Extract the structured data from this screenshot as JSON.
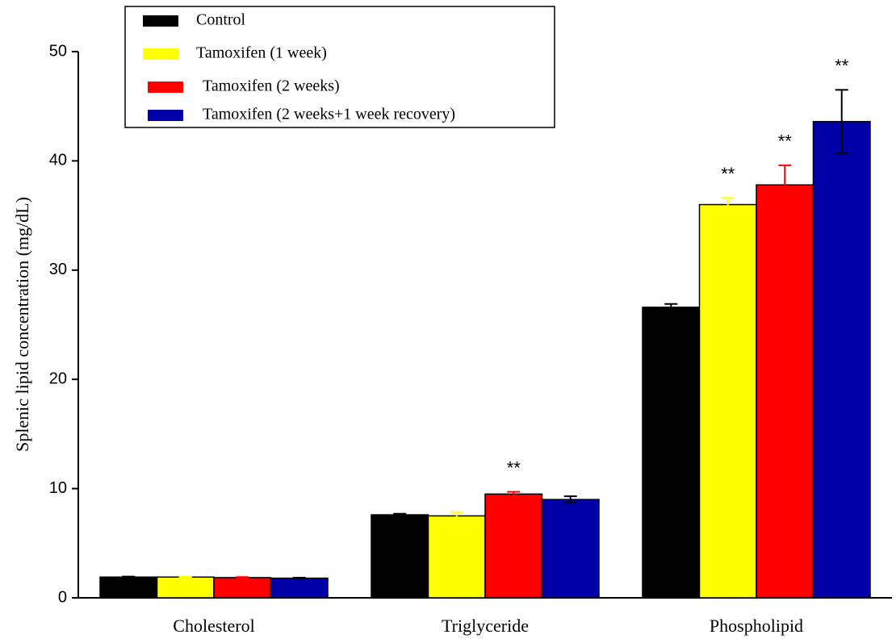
{
  "chart_data": {
    "type": "bar",
    "y_label": "Splenic lipid concentration (mg/dL)",
    "categories": [
      "Cholesterol",
      "Triglyceride",
      "Phospholipid"
    ],
    "series": [
      {
        "name": "Control",
        "color": "#000000",
        "values": [
          1.9,
          7.6,
          26.6
        ],
        "errors": [
          0.05,
          0.1,
          0.3
        ]
      },
      {
        "name": "Tamoxifen (1 week)",
        "color": "#ffff00",
        "values": [
          1.9,
          7.5,
          36.0
        ],
        "errors": [
          0.05,
          0.3,
          0.6
        ]
      },
      {
        "name": "Tamoxifen (2 weeks)",
        "color": "#ff0000",
        "values": [
          1.85,
          9.5,
          37.8
        ],
        "errors": [
          0.05,
          0.2,
          1.8
        ]
      },
      {
        "name": "Tamoxifen (2 weeks+1 week recovery)",
        "color": "#0000a8",
        "values": [
          1.8,
          9.0,
          43.6
        ],
        "errors": [
          0.05,
          0.3,
          2.9
        ]
      }
    ],
    "annotations": [
      {
        "text": "**",
        "category": "Triglyceride",
        "series": "Tamoxifen (2 weeks)"
      },
      {
        "text": "**",
        "category": "Phospholipid",
        "series": "Tamoxifen (1 week)"
      },
      {
        "text": "**",
        "category": "Phospholipid",
        "series": "Tamoxifen (2 weeks)"
      },
      {
        "text": "**",
        "category": "Phospholipid",
        "series": "Tamoxifen (2 weeks+1 week recovery)"
      }
    ],
    "ylim": [
      0,
      50
    ],
    "yticks": [
      0,
      10,
      20,
      30,
      40,
      50
    ],
    "legend": "top-left"
  }
}
